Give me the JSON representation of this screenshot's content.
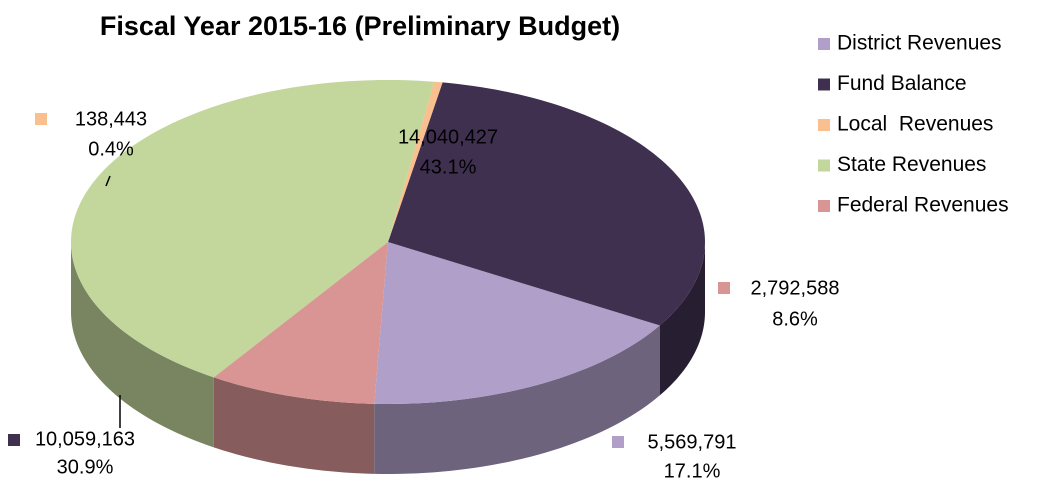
{
  "chart_data": {
    "type": "pie",
    "title": "Fiscal Year 2015-16 (Preliminary Budget)",
    "categories": [
      "District Revenues",
      "Fund Balance",
      "Local  Revenues",
      "State Revenues",
      "Federal Revenues"
    ],
    "values": [
      5569791,
      10059163,
      138443,
      14040427,
      2792588
    ],
    "value_labels": [
      "5,569,791",
      "10,059,163",
      "138,443",
      "14,040,427",
      "2,792,588"
    ],
    "percent_labels": [
      "17.1%",
      "30.9%",
      "0.4%",
      "43.1%",
      "8.6%"
    ],
    "colors": [
      "#b09fc8",
      "#3f3050",
      "#f9bf8f",
      "#c3d69b",
      "#d99594"
    ],
    "legend": "right"
  }
}
